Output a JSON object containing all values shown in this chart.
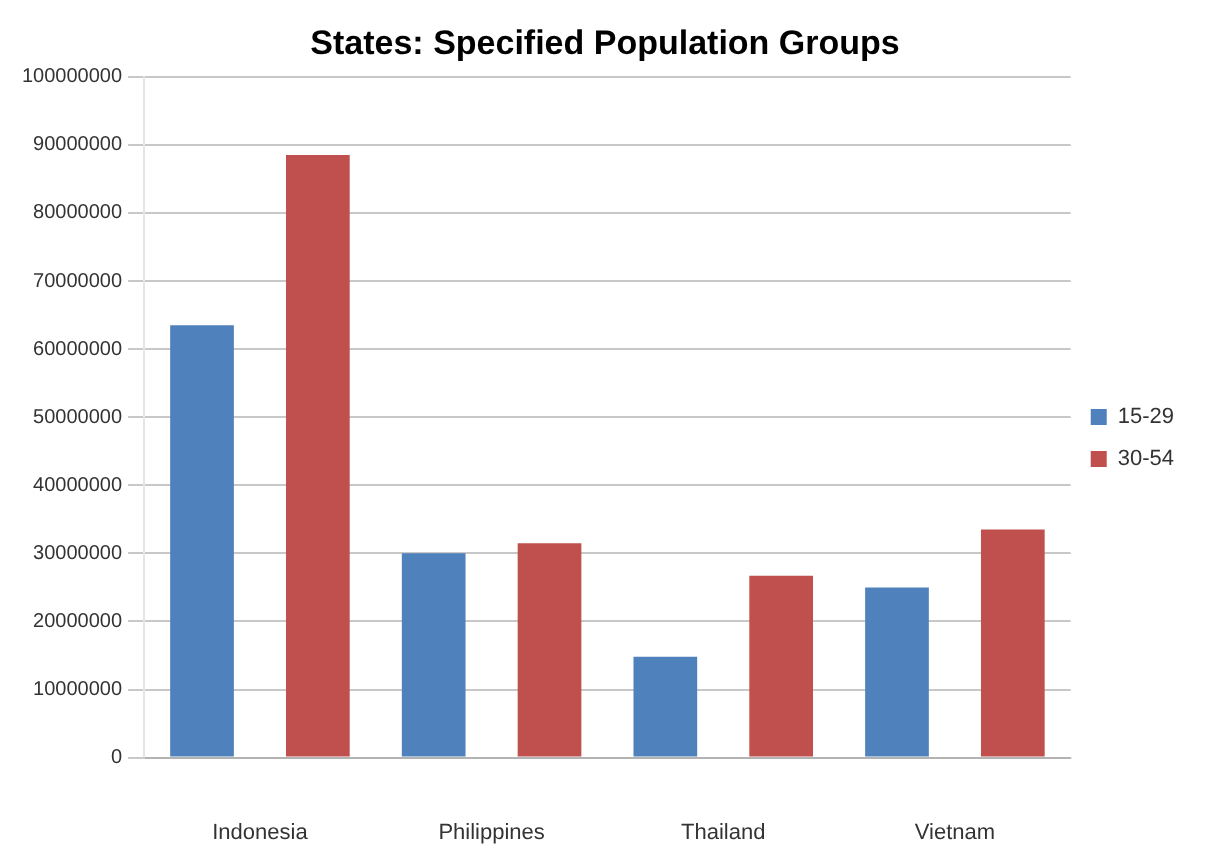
{
  "chart_data": {
    "type": "bar",
    "title": "States: Specified Population Groups",
    "categories": [
      "Indonesia",
      "Philippines",
      "Thailand",
      "Vietnam"
    ],
    "series": [
      {
        "name": "15-29",
        "color": "#4f81bd",
        "values": [
          63500000,
          30000000,
          14800000,
          25000000
        ]
      },
      {
        "name": "30-54",
        "color": "#c0504d",
        "values": [
          88500000,
          31500000,
          26700000,
          33500000
        ]
      }
    ],
    "ylim": [
      0,
      100000000
    ],
    "yticks": [
      0,
      10000000,
      20000000,
      30000000,
      40000000,
      50000000,
      60000000,
      70000000,
      80000000,
      90000000,
      100000000
    ],
    "grid": "y",
    "legend": "right"
  }
}
